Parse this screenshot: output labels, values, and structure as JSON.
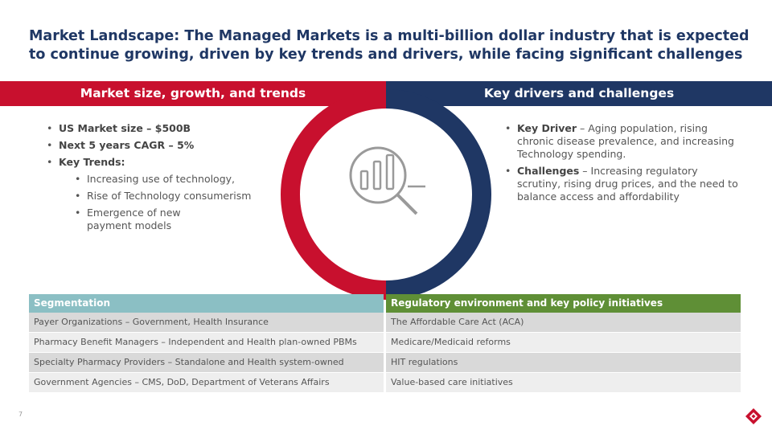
{
  "title": "Market Landscape: The Managed Markets is a multi-billion dollar industry that is expected to continue growing, driven by key trends and drivers, while facing significant challenges",
  "left_header": "Market size, growth, and trends",
  "right_header": "Key drivers and challenges",
  "left_bullets": {
    "market_size": "US Market size – $500B",
    "cagr": "Next 5 years CAGR – 5%",
    "key_trends": "Key Trends:",
    "trends": [
      "Increasing use of technology,",
      "Rise of Technology consumerism",
      "Emergence of new payment models"
    ]
  },
  "right_bullets": [
    {
      "lead": "Key Driver",
      "text": " – Aging population, rising chronic disease prevalence, and increasing Technology spending."
    },
    {
      "lead": "Challenges",
      "text": " – Increasing regulatory scrutiny, rising drug prices, and the need to balance access and affordability"
    }
  ],
  "center_icon": "magnifier-bar-chart-icon",
  "colors": {
    "navy": "#1f3764",
    "red": "#c8102e",
    "teal": "#8bbfc4",
    "green": "#5f8f36"
  },
  "segmentation": {
    "header": "Segmentation",
    "rows": [
      "Payer Organizations – Government, Health Insurance",
      "Pharmacy Benefit Managers – Independent and Health plan-owned PBMs",
      "Specialty Pharmacy Providers – Standalone and Health system-owned",
      "Government Agencies – CMS, DoD, Department of Veterans Affairs"
    ]
  },
  "regulatory": {
    "header": "Regulatory environment and key policy initiatives",
    "rows": [
      "The Affordable Care Act (ACA)",
      "Medicare/Medicaid reforms",
      "HIT regulations",
      "Value-based care initiatives"
    ]
  },
  "page_number": "7",
  "logo_icon": "brand-logo-icon"
}
